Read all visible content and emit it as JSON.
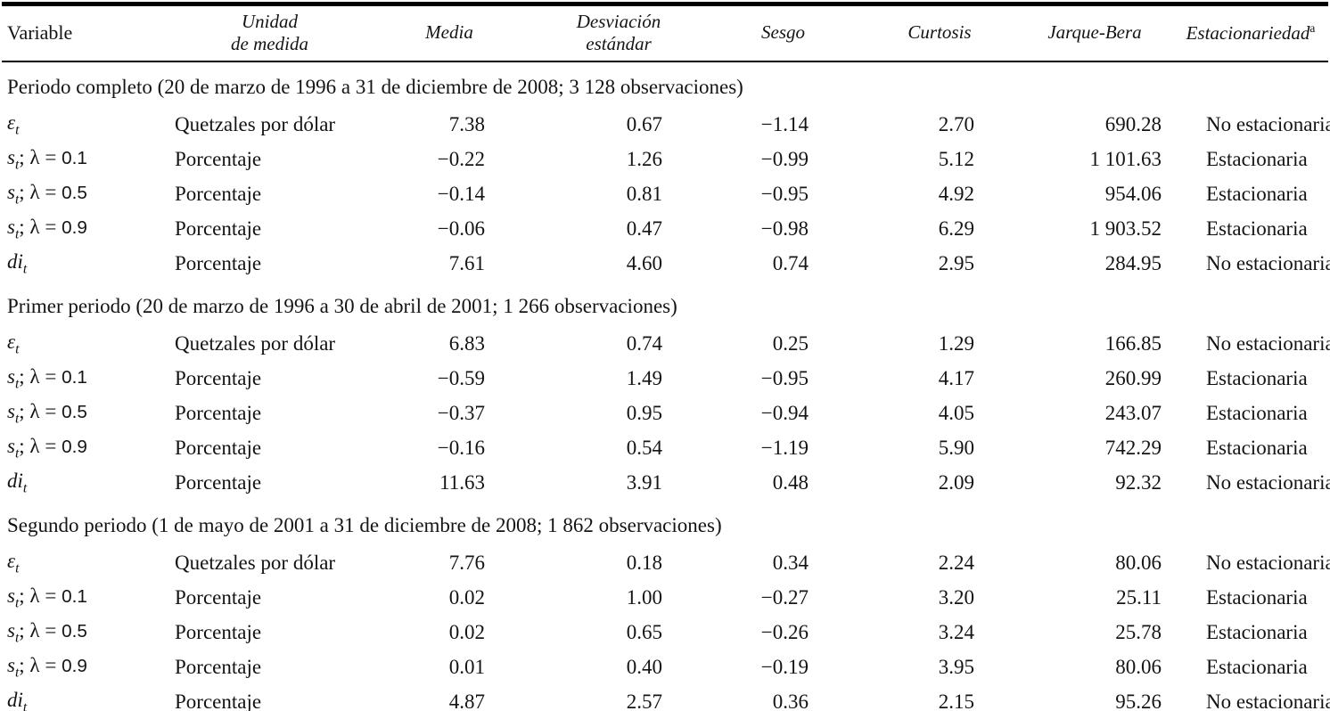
{
  "page": {
    "background": "#ffffff",
    "text_color": "#141414",
    "rule_color": "#000000"
  },
  "table": {
    "lambda_prefix": "; λ = ",
    "columns": [
      {
        "id": "variable",
        "lines": [
          "Variable"
        ],
        "italic": false
      },
      {
        "id": "unidad_de_medida",
        "lines": [
          "Unidad",
          "de medida"
        ],
        "italic": true
      },
      {
        "id": "media",
        "lines": [
          "Media"
        ],
        "italic": true
      },
      {
        "id": "desviacion_estandar",
        "lines": [
          "Desviación",
          "estándar"
        ],
        "italic": true
      },
      {
        "id": "sesgo",
        "lines": [
          "Sesgo"
        ],
        "italic": true
      },
      {
        "id": "curtosis",
        "lines": [
          "Curtosis"
        ],
        "italic": true
      },
      {
        "id": "jarque_bera",
        "lines": [
          "Jarque-Bera"
        ],
        "italic": true
      },
      {
        "id": "estacionariedad",
        "lines": [
          "Estacionariedad"
        ],
        "sup": "a",
        "italic": true
      }
    ],
    "sections": [
      {
        "title": "Periodo completo (20 de marzo de 1996 a 31 de diciembre de 2008; 3 128 observaciones)",
        "rows": [
          {
            "variable": {
              "sym": "ε",
              "sub": "t"
            },
            "unit": "Quetzales por dólar",
            "media": "7.38",
            "desviacion": "0.67",
            "sesgo": "−1.14",
            "curtosis": "2.70",
            "jarque_bera": "690.28",
            "estacionariedad": "No estacionaria"
          },
          {
            "variable": {
              "sym": "s",
              "sub": "t",
              "lambda": "0.1"
            },
            "unit": "Porcentaje",
            "media": "−0.22",
            "desviacion": "1.26",
            "sesgo": "−0.99",
            "curtosis": "5.12",
            "jarque_bera": "1 101.63",
            "estacionariedad": "Estacionaria"
          },
          {
            "variable": {
              "sym": "s",
              "sub": "t",
              "lambda": "0.5"
            },
            "unit": "Porcentaje",
            "media": "−0.14",
            "desviacion": "0.81",
            "sesgo": "−0.95",
            "curtosis": "4.92",
            "jarque_bera": "954.06",
            "estacionariedad": "Estacionaria"
          },
          {
            "variable": {
              "sym": "s",
              "sub": "t",
              "lambda": "0.9"
            },
            "unit": "Porcentaje",
            "media": "−0.06",
            "desviacion": "0.47",
            "sesgo": "−0.98",
            "curtosis": "6.29",
            "jarque_bera": "1 903.52",
            "estacionariedad": "Estacionaria"
          },
          {
            "variable": {
              "sym": "di",
              "sub": "t"
            },
            "unit": "Porcentaje",
            "media": "7.61",
            "desviacion": "4.60",
            "sesgo": "0.74",
            "curtosis": "2.95",
            "jarque_bera": "284.95",
            "estacionariedad": "No estacionaria"
          }
        ]
      },
      {
        "title": "Primer periodo (20 de marzo de 1996 a 30 de abril de 2001; 1 266 observaciones)",
        "rows": [
          {
            "variable": {
              "sym": "ε",
              "sub": "t"
            },
            "unit": "Quetzales por dólar",
            "media": "6.83",
            "desviacion": "0.74",
            "sesgo": "0.25",
            "curtosis": "1.29",
            "jarque_bera": "166.85",
            "estacionariedad": "No estacionaria"
          },
          {
            "variable": {
              "sym": "s",
              "sub": "t",
              "lambda": "0.1"
            },
            "unit": "Porcentaje",
            "media": "−0.59",
            "desviacion": "1.49",
            "sesgo": "−0.95",
            "curtosis": "4.17",
            "jarque_bera": "260.99",
            "estacionariedad": "Estacionaria"
          },
          {
            "variable": {
              "sym": "s",
              "sub": "t",
              "lambda": "0.5"
            },
            "unit": "Porcentaje",
            "media": "−0.37",
            "desviacion": "0.95",
            "sesgo": "−0.94",
            "curtosis": "4.05",
            "jarque_bera": "243.07",
            "estacionariedad": "Estacionaria"
          },
          {
            "variable": {
              "sym": "s",
              "sub": "t",
              "lambda": "0.9"
            },
            "unit": "Porcentaje",
            "media": "−0.16",
            "desviacion": "0.54",
            "sesgo": "−1.19",
            "curtosis": "5.90",
            "jarque_bera": "742.29",
            "estacionariedad": "Estacionaria"
          },
          {
            "variable": {
              "sym": "di",
              "sub": "t"
            },
            "unit": "Porcentaje",
            "media": "11.63",
            "desviacion": "3.91",
            "sesgo": "0.48",
            "curtosis": "2.09",
            "jarque_bera": "92.32",
            "estacionariedad": "No estacionaria"
          }
        ]
      },
      {
        "title": "Segundo periodo (1 de mayo de 2001 a 31 de diciembre de 2008; 1 862 observaciones)",
        "rows": [
          {
            "variable": {
              "sym": "ε",
              "sub": "t"
            },
            "unit": "Quetzales por dólar",
            "media": "7.76",
            "desviacion": "0.18",
            "sesgo": "0.34",
            "curtosis": "2.24",
            "jarque_bera": "80.06",
            "estacionariedad": "No estacionaria"
          },
          {
            "variable": {
              "sym": "s",
              "sub": "t",
              "lambda": "0.1"
            },
            "unit": "Porcentaje",
            "media": "0.02",
            "desviacion": "1.00",
            "sesgo": "−0.27",
            "curtosis": "3.20",
            "jarque_bera": "25.11",
            "estacionariedad": "Estacionaria"
          },
          {
            "variable": {
              "sym": "s",
              "sub": "t",
              "lambda": "0.5"
            },
            "unit": "Porcentaje",
            "media": "0.02",
            "desviacion": "0.65",
            "sesgo": "−0.26",
            "curtosis": "3.24",
            "jarque_bera": "25.78",
            "estacionariedad": "Estacionaria"
          },
          {
            "variable": {
              "sym": "s",
              "sub": "t",
              "lambda": "0.9"
            },
            "unit": "Porcentaje",
            "media": "0.01",
            "desviacion": "0.40",
            "sesgo": "−0.19",
            "curtosis": "3.95",
            "jarque_bera": "80.06",
            "estacionariedad": "Estacionaria"
          },
          {
            "variable": {
              "sym": "di",
              "sub": "t"
            },
            "unit": "Porcentaje",
            "media": "4.87",
            "desviacion": "2.57",
            "sesgo": "0.36",
            "curtosis": "2.15",
            "jarque_bera": "95.26",
            "estacionariedad": "No estacionaria"
          }
        ]
      }
    ]
  }
}
